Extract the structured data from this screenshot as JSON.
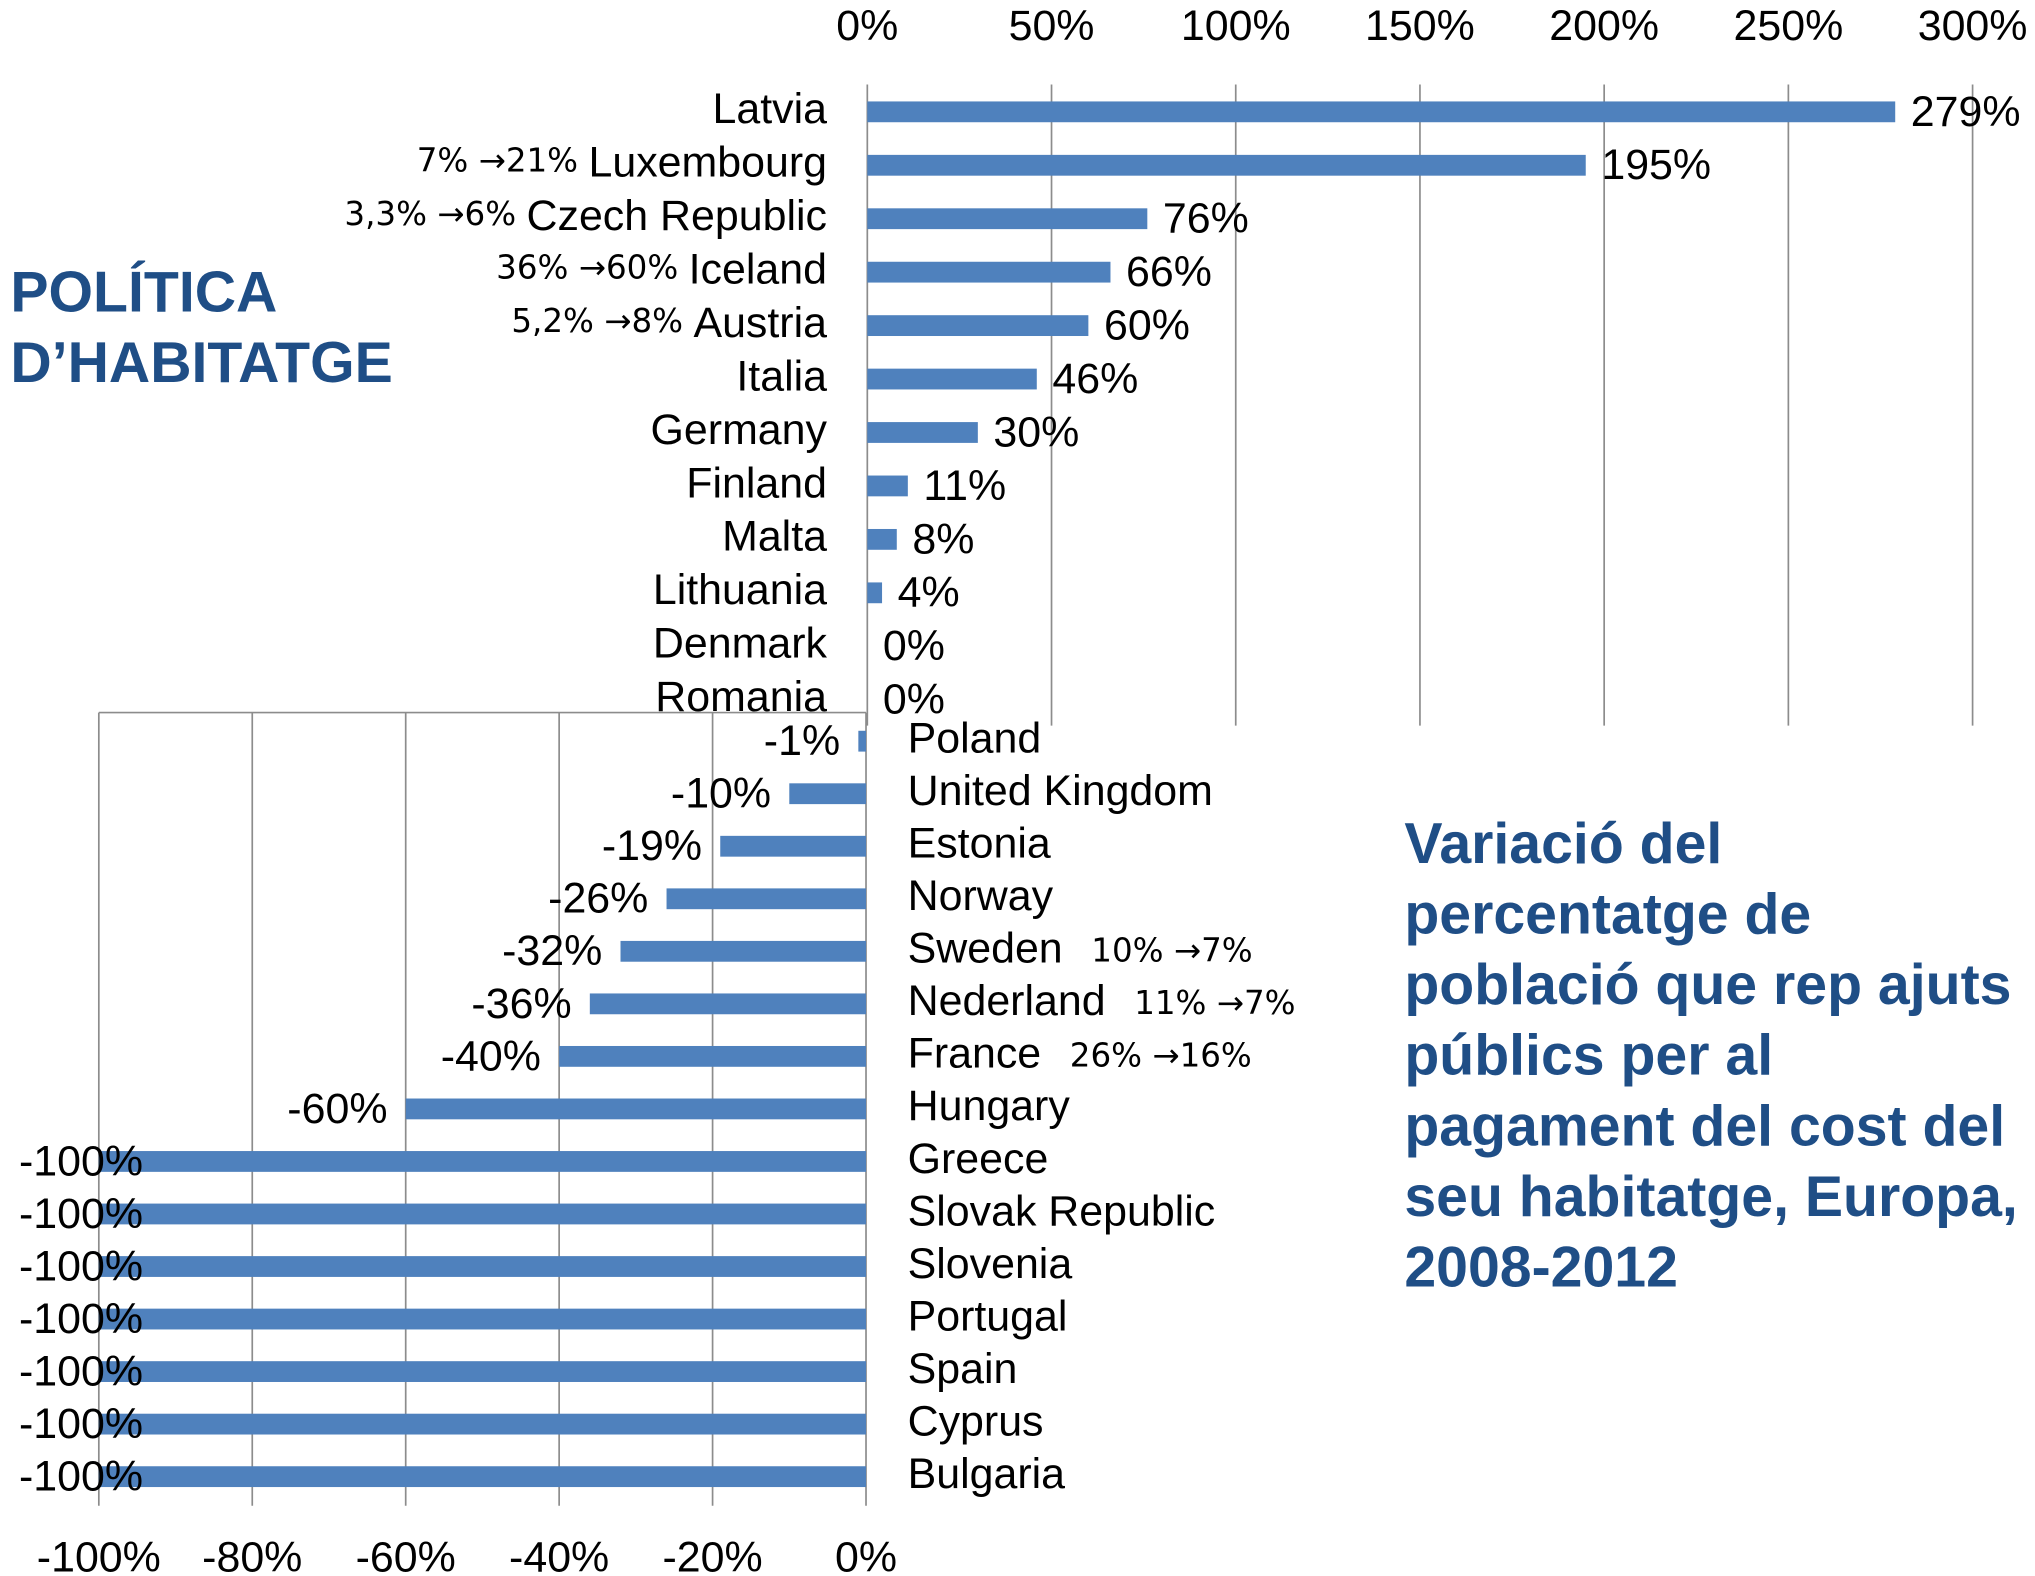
{
  "heading": [
    "POLÍTICA",
    "D’HABITATGE"
  ],
  "title": [
    "Variació del",
    "percentatge de",
    "població que rep ajuts",
    "públics per al",
    "pagament del cost del",
    "seu habitatge, Europa,",
    "2008-2012"
  ],
  "chart_data": [
    {
      "type": "bar",
      "orientation": "horizontal",
      "xaxis": "top",
      "grid": true,
      "color": "#4f81bd",
      "categories": [
        "Latvia",
        "Luxembourg",
        "Czech Republic",
        "Iceland",
        "Austria",
        "Italia",
        "Germany",
        "Finland",
        "Malta",
        "Lithuania",
        "Denmark",
        "Romania"
      ],
      "values": [
        279,
        195,
        76,
        66,
        60,
        46,
        30,
        11,
        8,
        4,
        0,
        0
      ],
      "value_labels": [
        "279%",
        "195%",
        "76%",
        "66%",
        "60%",
        "46%",
        "30%",
        "11%",
        "8%",
        "4%",
        "0%",
        "0%"
      ],
      "notes": [
        null,
        "7% →21%",
        "3,3% →6%",
        "36% →60%",
        "5,2% →8%",
        null,
        null,
        null,
        null,
        null,
        null,
        null
      ],
      "xlim": [
        0,
        300
      ],
      "xticks": [
        {
          "value": 0,
          "label": "0%"
        },
        {
          "value": 50,
          "label": "50%"
        },
        {
          "value": 100,
          "label": "100%"
        },
        {
          "value": 150,
          "label": "150%"
        },
        {
          "value": 200,
          "label": "200%"
        },
        {
          "value": 250,
          "label": "250%"
        },
        {
          "value": 300,
          "label": "300%"
        }
      ]
    },
    {
      "type": "bar",
      "orientation": "horizontal",
      "xaxis": "bottom",
      "grid": true,
      "color": "#4f81bd",
      "categories": [
        "Poland",
        "United Kingdom",
        "Estonia",
        "Norway",
        "Sweden",
        "Nederland",
        "France",
        "Hungary",
        "Greece",
        "Slovak Republic",
        "Slovenia",
        "Portugal",
        "Spain",
        "Cyprus",
        "Bulgaria"
      ],
      "values": [
        -1,
        -10,
        -19,
        -26,
        -32,
        -36,
        -40,
        -60,
        -100,
        -100,
        -100,
        -100,
        -100,
        -100,
        -100
      ],
      "value_labels": [
        "-1%",
        "-10%",
        "-19%",
        "-26%",
        "-32%",
        "-36%",
        "-40%",
        "-60%",
        "-100%",
        "-100%",
        "-100%",
        "-100%",
        "-100%",
        "-100%",
        "-100%"
      ],
      "notes": [
        null,
        null,
        null,
        null,
        "10% →7%",
        "11% →7%",
        "26% →16%",
        null,
        null,
        null,
        null,
        null,
        null,
        null,
        null
      ],
      "xlim": [
        -100,
        0
      ],
      "xticks": [
        {
          "value": -100,
          "label": "-100%"
        },
        {
          "value": -80,
          "label": "-80%"
        },
        {
          "value": -60,
          "label": "-60%"
        },
        {
          "value": -40,
          "label": "-40%"
        },
        {
          "value": -20,
          "label": "-20%"
        },
        {
          "value": 0,
          "label": "0%"
        }
      ]
    }
  ]
}
